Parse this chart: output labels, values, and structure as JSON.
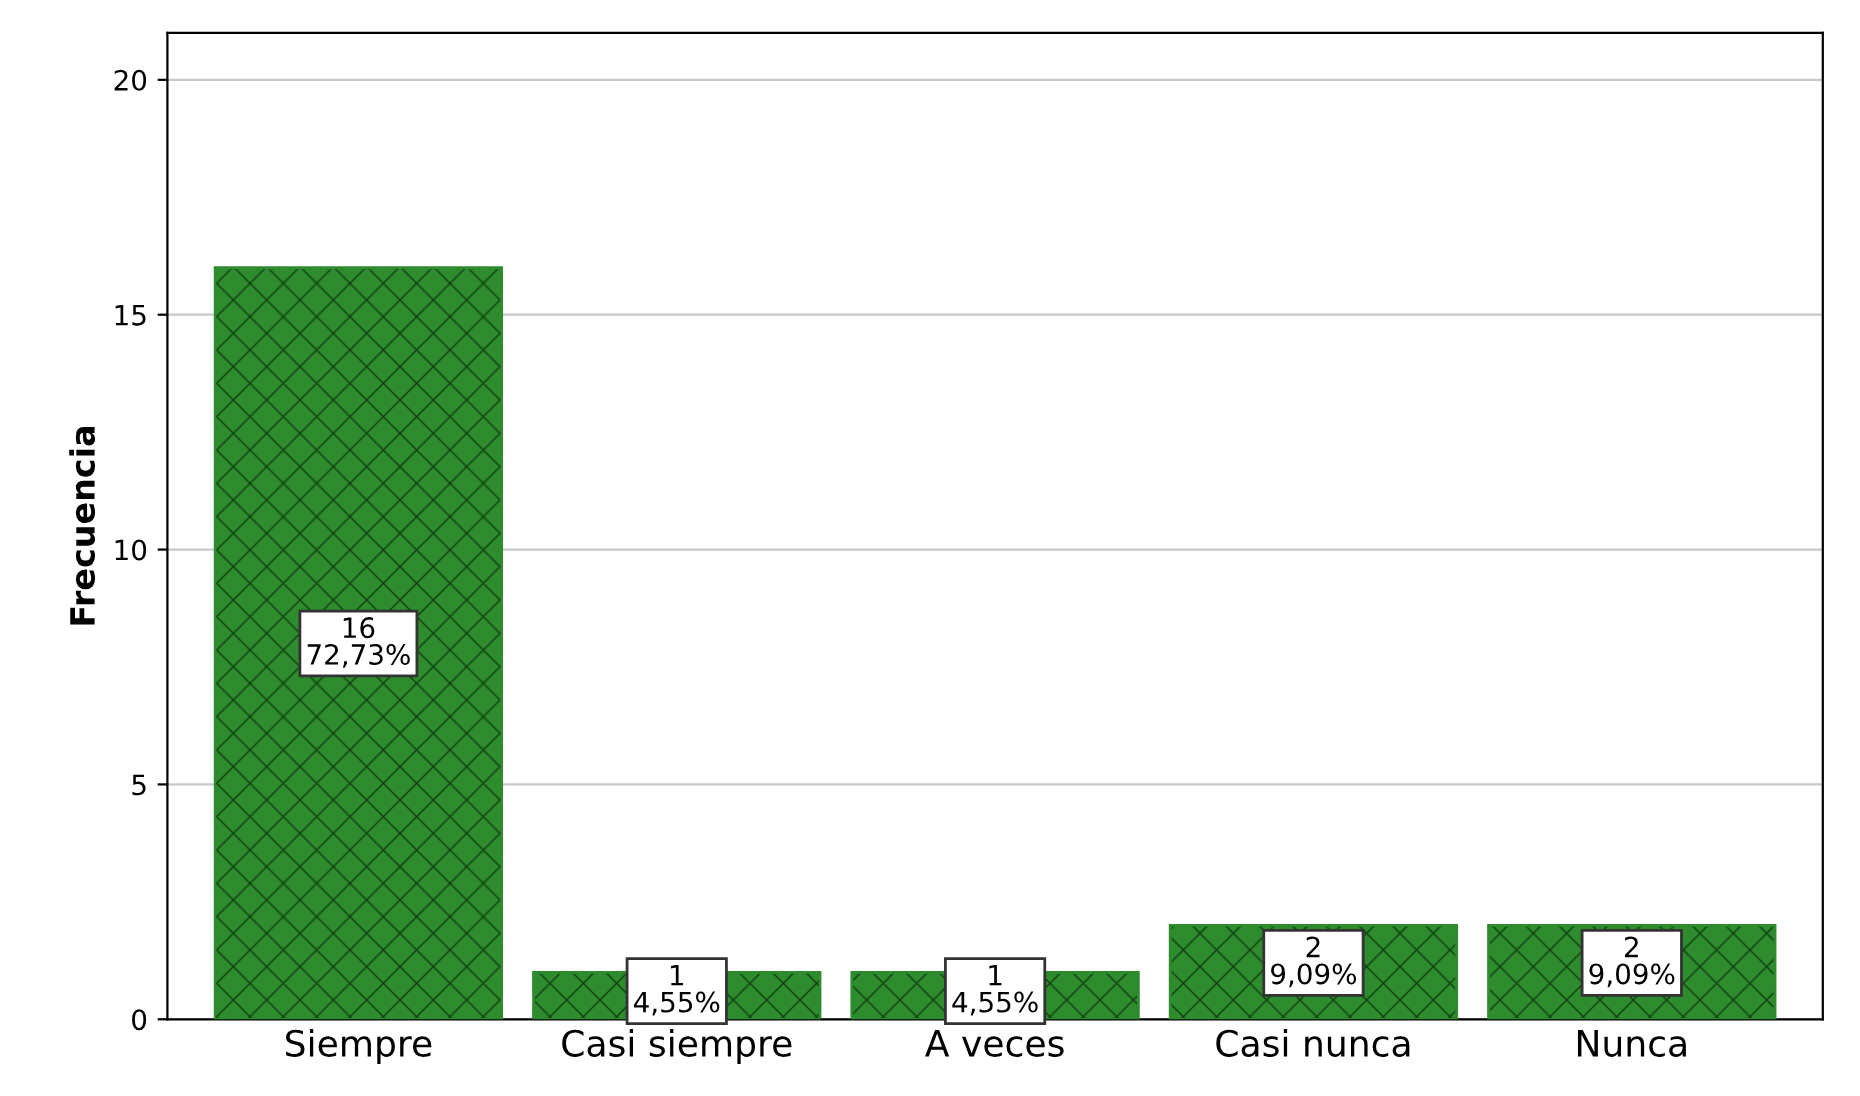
{
  "chart_data": {
    "type": "bar",
    "ylabel": "Frecuencia",
    "categories": [
      "Siempre",
      "Casi siempre",
      "A veces",
      "Casi nunca",
      "Nunca"
    ],
    "values": [
      16,
      1,
      1,
      2,
      2
    ],
    "value_labels": [
      "16\n72,73%",
      "1\n4,55%",
      "1\n4,55%",
      "2\n9,09%",
      "2\n9,09%"
    ],
    "color": "#2e8b2e",
    "ylim": [
      0,
      21
    ],
    "yticks": [
      0,
      5,
      10,
      15,
      20
    ],
    "grid": "y",
    "legend": false
  }
}
